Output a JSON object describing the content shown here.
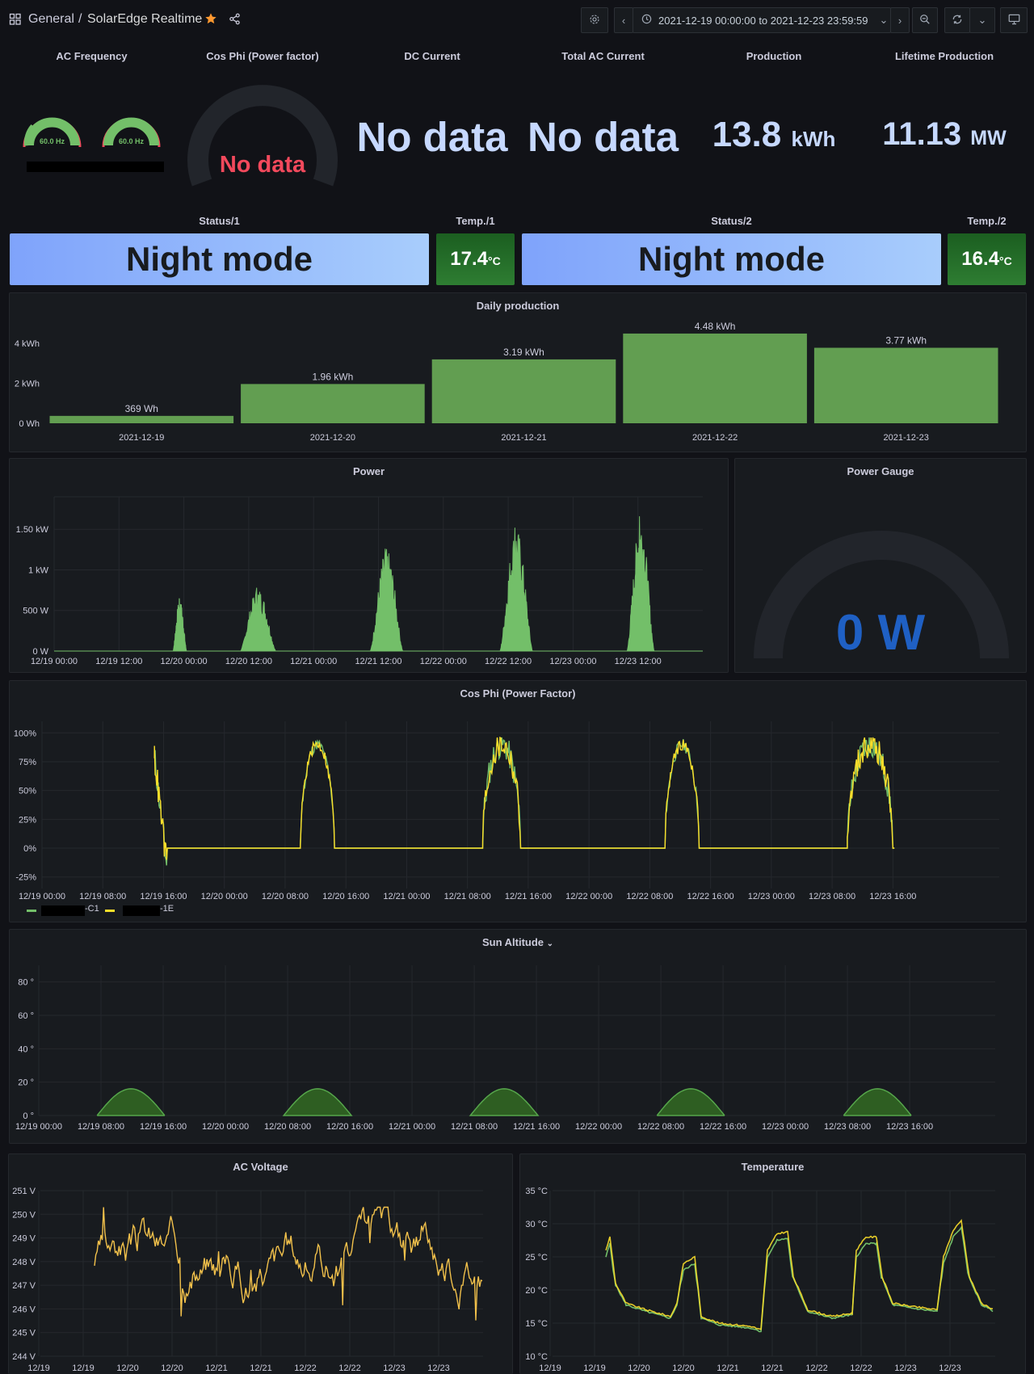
{
  "header": {
    "folder": "General",
    "separator": "/",
    "dashboard_title": "SolarEdge Realtime",
    "time_range": "2021-12-19 00:00:00 to 2021-12-23 23:59:59",
    "icons": [
      "grid-icon",
      "star-icon",
      "share-icon",
      "settings-icon",
      "chevron-left-icon",
      "clock-icon",
      "chevron-down-icon",
      "chevron-right-icon",
      "zoom-out-icon",
      "refresh-icon",
      "tv-icon"
    ]
  },
  "row1": {
    "ac_frequency": {
      "title": "AC Frequency",
      "gauges": [
        "60.0 Hz",
        "60.0 Hz"
      ]
    },
    "cos_phi": {
      "title": "Cos Phi (Power factor)",
      "value": "No data"
    },
    "dc_current": {
      "title": "DC Current",
      "value": "No data"
    },
    "total_ac_current": {
      "title": "Total AC Current",
      "value": "No data"
    },
    "production": {
      "title": "Production",
      "value": "13.8",
      "unit": "kWh"
    },
    "lifetime": {
      "title": "Lifetime Production",
      "value": "11.13",
      "unit": "MW"
    }
  },
  "row2": {
    "status1": {
      "title": "Status/1",
      "value": "Night mode"
    },
    "temp1": {
      "title": "Temp./1",
      "value": "17.4",
      "unit": "°C"
    },
    "status2": {
      "title": "Status/2",
      "value": "Night mode"
    },
    "temp2": {
      "title": "Temp./2",
      "value": "16.4",
      "unit": "°C"
    }
  },
  "power_gauge": {
    "title": "Power Gauge",
    "value": "0 W"
  },
  "colors": {
    "green": "#73bf69",
    "yellow": "#fade2a",
    "orange": "#ff9830",
    "blue_text": "#1f60c4",
    "bg": "#111217",
    "panel": "#181b1f"
  },
  "chart_data": [
    {
      "type": "bar",
      "title": "Daily production",
      "categories": [
        "2021-12-19",
        "2021-12-20",
        "2021-12-21",
        "2021-12-22",
        "2021-12-23"
      ],
      "values": [
        0.369,
        1.96,
        3.19,
        4.48,
        3.77
      ],
      "data_labels": [
        "369 Wh",
        "1.96 kWh",
        "3.19 kWh",
        "4.48 kWh",
        "3.77 kWh"
      ],
      "y_ticks": [
        {
          "v": 0,
          "label": "0 Wh"
        },
        {
          "v": 2,
          "label": "2 kWh"
        },
        {
          "v": 4,
          "label": "4 kWh"
        }
      ],
      "ylim": [
        0,
        4.8
      ]
    },
    {
      "type": "area",
      "title": "Power",
      "x_ticks": [
        "12/19 00:00",
        "12/19 12:00",
        "12/20 00:00",
        "12/20 12:00",
        "12/21 00:00",
        "12/21 12:00",
        "12/22 00:00",
        "12/22 12:00",
        "12/23 00:00",
        "12/23 12:00"
      ],
      "y_ticks": [
        {
          "v": 0,
          "label": "0 W"
        },
        {
          "v": 500,
          "label": "500 W"
        },
        {
          "v": 1000,
          "label": "1 kW"
        },
        {
          "v": 1500,
          "label": "1.50 kW"
        }
      ],
      "ylim": [
        0,
        1900
      ],
      "xlim_hours": [
        0,
        120
      ],
      "peaks": [
        {
          "start": 22,
          "end": 24.5,
          "peak": 650
        },
        {
          "start": 34.5,
          "end": 41,
          "peak": 780
        },
        {
          "start": 58.5,
          "end": 64.5,
          "peak": 1260
        },
        {
          "start": 82.5,
          "end": 88.5,
          "peak": 1520
        },
        {
          "start": 106,
          "end": 111,
          "peak": 1660
        }
      ]
    },
    {
      "type": "line",
      "title": "Cos Phi (Power Factor)",
      "x_ticks": [
        "12/19 00:00",
        "12/19 08:00",
        "12/19 16:00",
        "12/20 00:00",
        "12/20 08:00",
        "12/20 16:00",
        "12/21 00:00",
        "12/21 08:00",
        "12/21 16:00",
        "12/22 00:00",
        "12/22 08:00",
        "12/22 16:00",
        "12/23 00:00",
        "12/23 08:00",
        "12/23 16:00"
      ],
      "y_ticks": [
        {
          "v": -25,
          "label": "-25%"
        },
        {
          "v": 0,
          "label": "0%"
        },
        {
          "v": 25,
          "label": "25%"
        },
        {
          "v": 50,
          "label": "50%"
        },
        {
          "v": 75,
          "label": "75%"
        },
        {
          "v": 100,
          "label": "100%"
        }
      ],
      "ylim": [
        -35,
        110
      ],
      "xlim_hours": [
        0,
        126
      ],
      "series": [
        {
          "name": "-C1",
          "color": "#73bf69"
        },
        {
          "name": "-1E",
          "color": "#fade2a"
        }
      ],
      "legend": [
        "-C1",
        "-1E"
      ]
    },
    {
      "type": "area",
      "title": "Sun Altitude",
      "x_ticks": [
        "12/19 00:00",
        "12/19 08:00",
        "12/19 16:00",
        "12/20 00:00",
        "12/20 08:00",
        "12/20 16:00",
        "12/21 00:00",
        "12/21 08:00",
        "12/21 16:00",
        "12/22 00:00",
        "12/22 08:00",
        "12/22 16:00",
        "12/23 00:00",
        "12/23 08:00",
        "12/23 16:00"
      ],
      "y_ticks": [
        {
          "v": 0,
          "label": "0 °"
        },
        {
          "v": 20,
          "label": "20 °"
        },
        {
          "v": 40,
          "label": "40 °"
        },
        {
          "v": 60,
          "label": "60 °"
        },
        {
          "v": 80,
          "label": "80 °"
        }
      ],
      "ylim": [
        0,
        90
      ],
      "xlim_hours": [
        0,
        123
      ],
      "day_peak": 16
    },
    {
      "type": "line",
      "title": "AC Voltage",
      "x_ticks": [
        "12/19",
        "12/19",
        "12/20",
        "12/20",
        "12/21",
        "12/21",
        "12/22",
        "12/22",
        "12/23",
        "12/23"
      ],
      "y_ticks": [
        {
          "v": 244,
          "label": "244 V"
        },
        {
          "v": 245,
          "label": "245 V"
        },
        {
          "v": 246,
          "label": "246 V"
        },
        {
          "v": 247,
          "label": "247 V"
        },
        {
          "v": 248,
          "label": "248 V"
        },
        {
          "v": 249,
          "label": "249 V"
        },
        {
          "v": 250,
          "label": "250 V"
        },
        {
          "v": 251,
          "label": "251 V"
        }
      ],
      "ylim": [
        244,
        251
      ],
      "range": [
        245.2,
        250.3
      ]
    },
    {
      "type": "line",
      "title": "Temperature",
      "x_ticks": [
        "12/19",
        "12/19",
        "12/20",
        "12/20",
        "12/21",
        "12/21",
        "12/22",
        "12/22",
        "12/23",
        "12/23"
      ],
      "y_ticks": [
        {
          "v": 10,
          "label": "10 °C"
        },
        {
          "v": 15,
          "label": "15 °C"
        },
        {
          "v": 20,
          "label": "20 °C"
        },
        {
          "v": 25,
          "label": "25 °C"
        },
        {
          "v": 30,
          "label": "30 °C"
        },
        {
          "v": 35,
          "label": "35 °C"
        }
      ],
      "ylim": [
        10,
        35
      ]
    }
  ]
}
